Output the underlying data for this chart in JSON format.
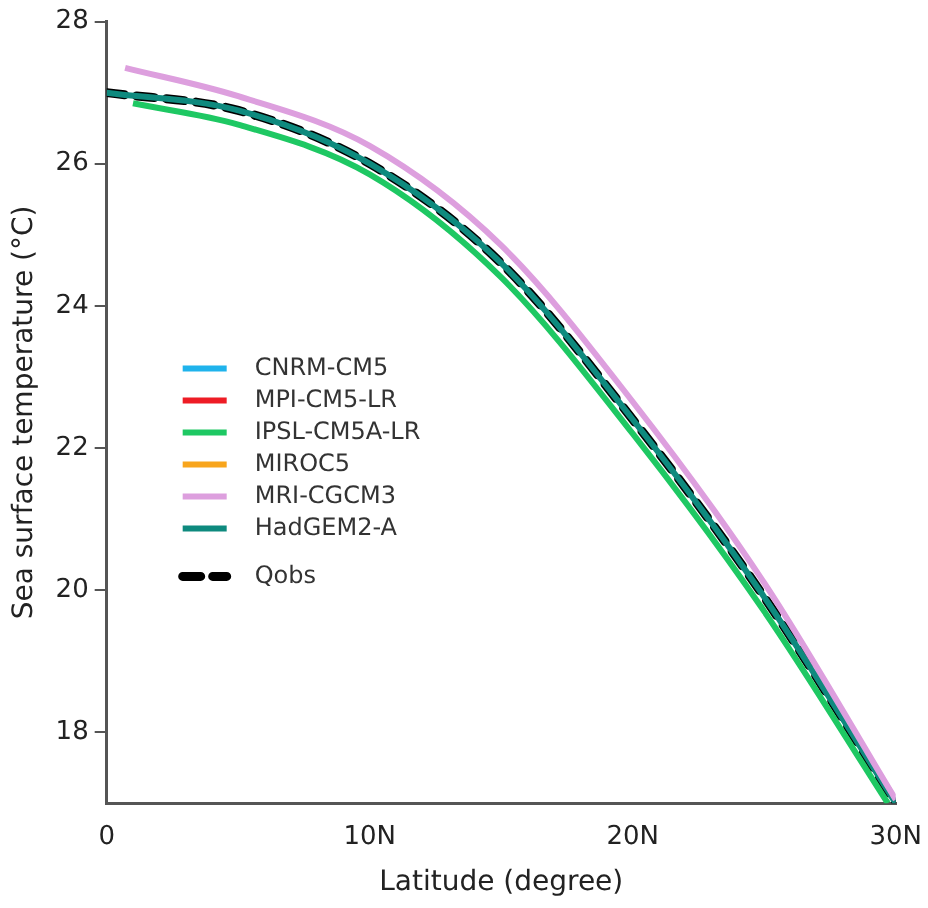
{
  "chart_data": {
    "type": "line",
    "xlabel": "Latitude (degree)",
    "ylabel": "Sea surface temperature (°C)",
    "xlim": [
      0,
      30
    ],
    "xticks": [
      0,
      {
        "value": 10,
        "label": "10N"
      },
      {
        "value": 20,
        "label": "20N"
      },
      {
        "value": 30,
        "label": "30N"
      }
    ],
    "ylim": [
      17,
      28
    ],
    "yticks": [
      18,
      20,
      22,
      24,
      26,
      28
    ],
    "grid": false,
    "legend": "left",
    "marker": "none",
    "line_style": "solid",
    "series": [
      {
        "name": "CNRM-CM5",
        "color": "#1fb3ec"
      },
      {
        "name": "MPI-CM5-LR",
        "color": "#ee1c25"
      },
      {
        "name": "IPSL-CM5A-LR",
        "color": "#1ec863",
        "x": [
          1,
          5,
          10,
          15,
          20,
          25,
          29.7
        ],
        "values": [
          26.85,
          26.55,
          25.85,
          24.4,
          22.2,
          19.7,
          17.0
        ]
      },
      {
        "name": "MIROC5",
        "color": "#f8a51c"
      },
      {
        "name": "MRI-CGCM3",
        "color": "#dd9fde",
        "x": [
          0.7,
          5,
          10,
          15,
          20,
          25,
          30
        ],
        "values": [
          27.35,
          26.95,
          26.25,
          24.85,
          22.65,
          20.1,
          17.05
        ]
      },
      {
        "name": "HadGEM2-A",
        "color": "#0e8a7e",
        "x": [
          0,
          5,
          10,
          15,
          20,
          25,
          30
        ],
        "values": [
          27.0,
          26.75,
          26.0,
          24.6,
          22.4,
          19.9,
          17.0
        ]
      },
      {
        "name": "Qobs",
        "color": "#000000",
        "line_style": "dashed",
        "x": [
          0,
          5,
          10,
          15,
          20,
          25,
          30
        ],
        "values": [
          27.0,
          26.75,
          26.0,
          24.6,
          22.4,
          19.9,
          17.0
        ]
      }
    ]
  }
}
